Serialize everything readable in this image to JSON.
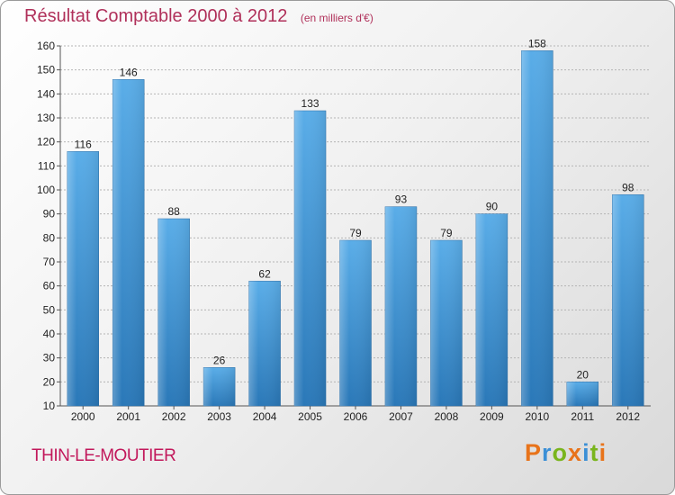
{
  "chart_data": {
    "type": "bar",
    "title": "Résultat Comptable 2000 à 2012",
    "subtitle": "(en milliers d'€)",
    "categories": [
      "2000",
      "2001",
      "2002",
      "2003",
      "2004",
      "2005",
      "2006",
      "2007",
      "2008",
      "2009",
      "2010",
      "2011",
      "2012"
    ],
    "values": [
      116,
      146,
      88,
      26,
      62,
      133,
      79,
      93,
      79,
      90,
      158,
      20,
      98
    ],
    "ylim": [
      10,
      160
    ],
    "yticks": [
      10,
      20,
      30,
      40,
      50,
      60,
      70,
      80,
      90,
      100,
      110,
      120,
      130,
      140,
      150,
      160
    ],
    "grid": true,
    "bar_color": "#3d93d6"
  },
  "footer": {
    "commune": "THIN-LE-MOUTIER",
    "logo": "Proxiti",
    "logo_colors": [
      "#e8731a",
      "#3b8fd6",
      "#7ab51d",
      "#e8731a",
      "#3b8fd6",
      "#7ab51d",
      "#e8731a"
    ]
  }
}
